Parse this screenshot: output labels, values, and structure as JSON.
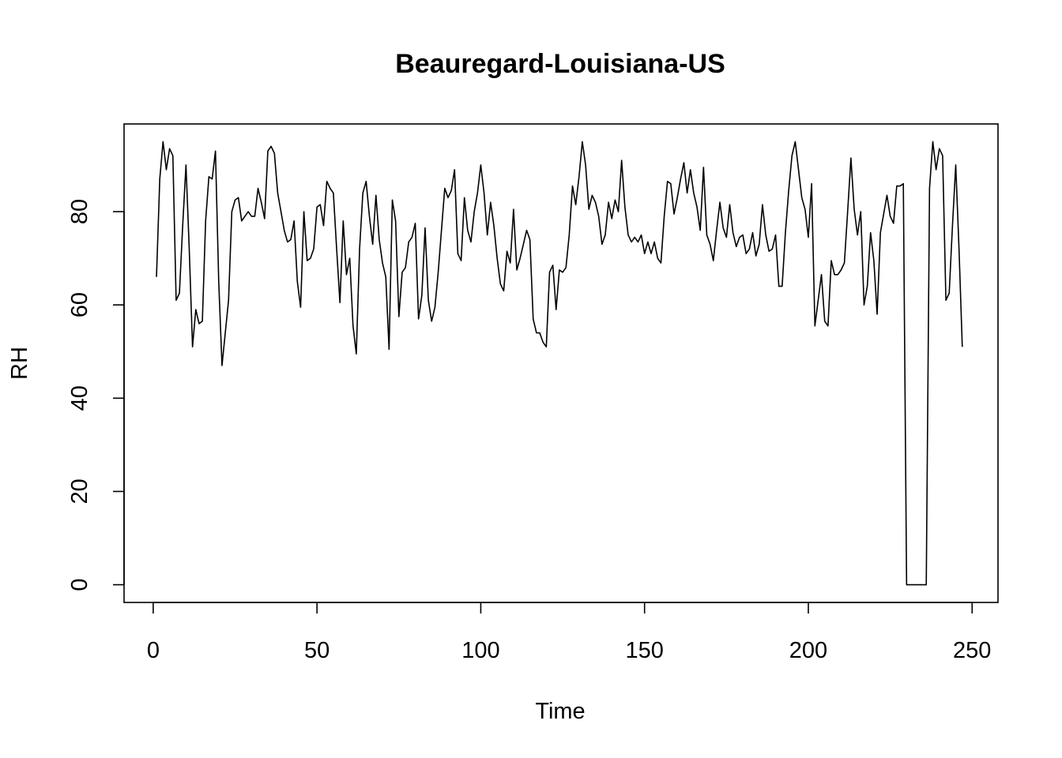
{
  "chart_data": {
    "type": "line",
    "title": "Beauregard-Louisiana-US",
    "xlabel": "Time",
    "ylabel": "RH",
    "xlim": [
      -8.9,
      257.9
    ],
    "ylim": [
      -3.8,
      98.8
    ],
    "xticks": [
      0,
      50,
      100,
      150,
      200,
      250
    ],
    "yticks": [
      0,
      20,
      40,
      60,
      80
    ],
    "grid": false,
    "legend": "none",
    "series": [
      {
        "x_start": 1,
        "values": [
          66,
          87,
          95,
          89,
          93.5,
          92,
          61,
          62.5,
          77,
          90,
          72,
          51,
          59,
          56,
          56.5,
          78,
          87.5,
          87,
          93,
          65,
          47,
          54,
          61,
          80,
          82.5,
          83,
          78,
          79,
          80,
          79,
          79,
          85,
          82,
          78.5,
          93,
          94,
          92.5,
          84,
          80,
          76,
          73.5,
          74,
          78,
          65,
          59.5,
          80,
          69.5,
          70,
          72,
          81,
          81.5,
          77,
          86.5,
          85,
          84,
          72,
          60.5,
          78,
          66.5,
          70,
          55.5,
          49.5,
          72,
          84,
          86.5,
          79,
          73,
          83.5,
          74,
          69,
          66,
          50.5,
          82.5,
          78,
          57.5,
          67,
          68,
          73.5,
          74.5,
          77.5,
          57,
          62,
          76.5,
          61,
          56.5,
          59.5,
          67,
          76,
          85,
          83,
          84.5,
          89,
          71,
          69.5,
          83,
          76,
          73.5,
          80,
          84,
          90,
          84,
          75,
          82,
          77,
          70,
          64.5,
          63,
          71.5,
          69,
          80.5,
          67.5,
          70,
          73,
          76,
          74,
          57,
          54,
          54,
          52,
          51,
          67,
          68.5,
          59,
          67.5,
          67,
          68,
          75,
          85.5,
          81.5,
          87.5,
          95,
          90,
          80.5,
          83.5,
          82,
          79,
          73,
          75,
          82,
          78.5,
          82.5,
          80,
          91,
          81,
          75,
          73.5,
          74.5,
          73.5,
          75,
          71,
          73.5,
          71,
          73.5,
          70,
          69,
          79,
          86.5,
          86,
          79.5,
          83,
          87,
          90.5,
          84,
          89,
          84,
          81,
          76,
          89.5,
          75,
          73,
          69.5,
          76,
          82,
          76.5,
          74.5,
          81.5,
          75.5,
          72.5,
          74.5,
          75,
          71,
          72,
          75.5,
          70.5,
          73,
          81.5,
          75,
          71.5,
          72,
          75,
          64,
          64,
          75.5,
          84.5,
          92,
          95,
          89,
          83,
          80.5,
          74.5,
          86,
          55.5,
          61,
          66.5,
          56.5,
          55.5,
          69.5,
          66.5,
          66.5,
          67.5,
          69,
          80,
          91.5,
          80.5,
          75,
          80,
          60,
          64,
          75.5,
          69.5,
          58,
          75.5,
          79.5,
          83.5,
          79,
          77.5,
          85.5,
          85.5,
          86,
          0,
          0,
          0,
          0,
          0,
          0,
          0,
          85,
          95,
          89,
          93.5,
          92,
          61,
          62.5,
          77,
          90,
          72,
          51
        ]
      }
    ]
  }
}
